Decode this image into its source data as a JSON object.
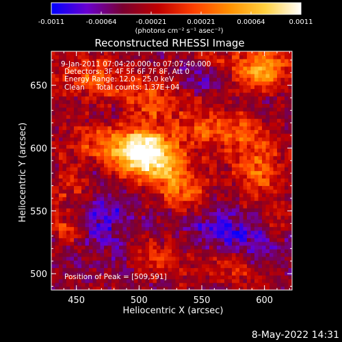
{
  "chart_data": {
    "type": "heatmap",
    "title": "Reconstructed RHESSI Image",
    "xlabel": "Heliocentric X (arcsec)",
    "ylabel": "Heliocentric Y (arcsec)",
    "xlim": [
      430,
      622
    ],
    "ylim": [
      487,
      677
    ],
    "x_ticks": [
      450,
      500,
      550,
      600
    ],
    "y_ticks": [
      500,
      550,
      600,
      650
    ],
    "colorbar": {
      "min": -0.0011,
      "max": 0.0011,
      "ticks": [
        "-0.0011",
        "-0.00064",
        "-0.00021",
        "0.00021",
        "0.00064",
        "0.0011"
      ],
      "unit_label": "(photons cm⁻² s⁻¹ asec⁻²)",
      "colormap": [
        "#0000ff",
        "#6a00d0",
        "#7a0030",
        "#c00000",
        "#ff4000",
        "#ff9000",
        "#ffd040",
        "#ffffff"
      ]
    },
    "annotations": [
      "9-Jan-2011 07:04:20.000 to 07:07:40.000",
      "Detectors: 3F 4F 5F 6F 7F 8F, Att 0",
      "Energy Range: 12.0 - 25.0 keV",
      "Clean     Total counts: 1.37E+04"
    ],
    "peak_label": "Position of Peak = [509,591]",
    "peak": {
      "x": 509,
      "y": 591
    },
    "sources": [
      {
        "x": 506,
        "y": 595,
        "sx": 13,
        "sy": 13,
        "amp": 1.0
      },
      {
        "x": 478,
        "y": 600,
        "sx": 20,
        "sy": 14,
        "amp": 0.55
      },
      {
        "x": 530,
        "y": 577,
        "sx": 12,
        "sy": 14,
        "amp": 0.5
      },
      {
        "x": 462,
        "y": 657,
        "sx": 15,
        "sy": 12,
        "amp": 0.42
      },
      {
        "x": 510,
        "y": 640,
        "sx": 20,
        "sy": 14,
        "amp": 0.35
      },
      {
        "x": 598,
        "y": 662,
        "sx": 17,
        "sy": 13,
        "amp": 0.58
      },
      {
        "x": 548,
        "y": 615,
        "sx": 15,
        "sy": 13,
        "amp": 0.35
      },
      {
        "x": 595,
        "y": 583,
        "sx": 15,
        "sy": 18,
        "amp": 0.42
      },
      {
        "x": 585,
        "y": 615,
        "sx": 14,
        "sy": 12,
        "amp": 0.3
      },
      {
        "x": 575,
        "y": 505,
        "sx": 25,
        "sy": 10,
        "amp": 0.3
      },
      {
        "x": 515,
        "y": 512,
        "sx": 12,
        "sy": 10,
        "amp": 0.28
      },
      {
        "x": 444,
        "y": 536,
        "sx": 10,
        "sy": 8,
        "amp": 0.28
      },
      {
        "x": 447,
        "y": 568,
        "sx": 14,
        "sy": 12,
        "amp": 0.25
      },
      {
        "x": 610,
        "y": 540,
        "sx": 8,
        "sy": 8,
        "amp": 0.25
      },
      {
        "x": 545,
        "y": 560,
        "sx": 10,
        "sy": 10,
        "amp": 0.25
      },
      {
        "x": 560,
        "y": 670,
        "sx": 10,
        "sy": 10,
        "amp": 0.2
      },
      {
        "x": 480,
        "y": 625,
        "sx": 6,
        "sy": 6,
        "amp": -0.22
      },
      {
        "x": 463,
        "y": 585,
        "sx": 9,
        "sy": 9,
        "amp": -0.2
      },
      {
        "x": 472,
        "y": 545,
        "sx": 15,
        "sy": 18,
        "amp": -0.3
      },
      {
        "x": 560,
        "y": 540,
        "sx": 15,
        "sy": 12,
        "amp": -0.3
      },
      {
        "x": 593,
        "y": 520,
        "sx": 18,
        "sy": 15,
        "amp": -0.3
      },
      {
        "x": 553,
        "y": 657,
        "sx": 15,
        "sy": 10,
        "amp": -0.25
      },
      {
        "x": 597,
        "y": 633,
        "sx": 9,
        "sy": 8,
        "amp": -0.22
      }
    ]
  },
  "footer": {
    "timestamp": "8-May-2022 14:31"
  }
}
